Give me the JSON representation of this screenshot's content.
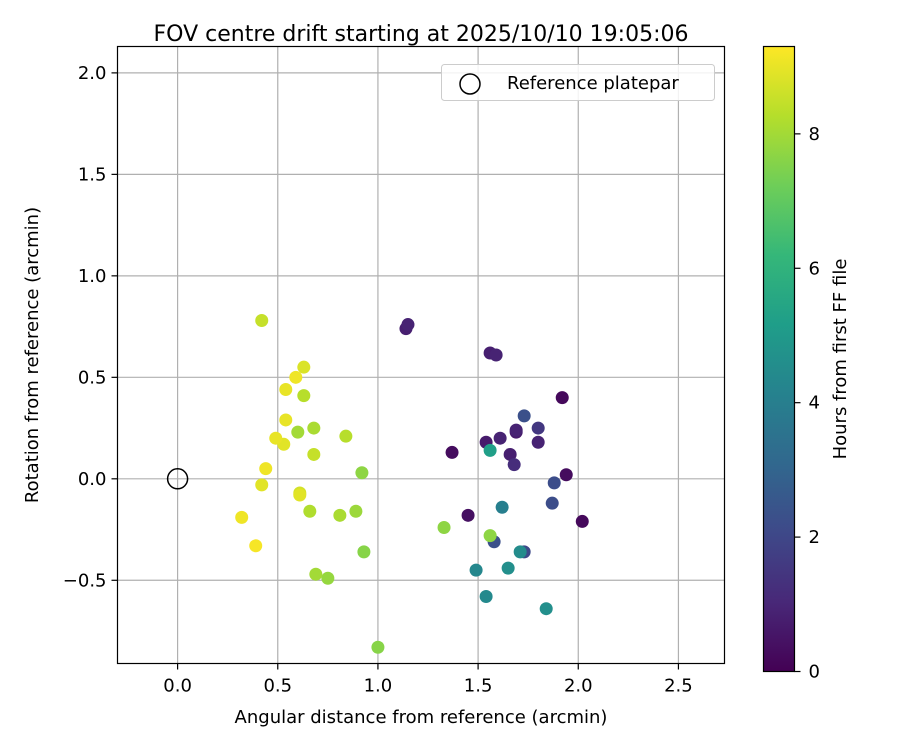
{
  "chart_data": {
    "type": "scatter",
    "title": "FOV centre drift starting at 2025/10/10 19:05:06",
    "xlabel": "Angular distance from reference (arcmin)",
    "ylabel": "Rotation from reference (arcmin)",
    "xlim": [
      -0.3,
      2.73
    ],
    "ylim": [
      -0.91,
      2.13
    ],
    "xticks": [
      0.0,
      0.5,
      1.0,
      1.5,
      2.0,
      2.5
    ],
    "xtick_labels": [
      "0.0",
      "0.5",
      "1.0",
      "1.5",
      "2.0",
      "2.5"
    ],
    "yticks": [
      -0.5,
      0.0,
      0.5,
      1.0,
      1.5,
      2.0
    ],
    "ytick_labels": [
      "−0.5",
      "0.0",
      "0.5",
      "1.0",
      "1.5",
      "2.0"
    ],
    "grid": true,
    "legend": {
      "position": "top-right",
      "entries": [
        "Reference platepar"
      ]
    },
    "reference_point": {
      "label": "Reference platepar",
      "x": 0.0,
      "y": 0.0
    },
    "colorbar": {
      "label": "Hours from first FF file",
      "range": [
        0,
        9.3
      ],
      "ticks": [
        0,
        2,
        4,
        6,
        8
      ],
      "tick_labels": [
        "0",
        "2",
        "4",
        "6",
        "8"
      ],
      "colormap": "viridis",
      "colors": [
        "#440154",
        "#482878",
        "#3e4989",
        "#31688e",
        "#26828e",
        "#1f9e89",
        "#35b779",
        "#6ece58",
        "#b5de2b",
        "#fde725"
      ]
    },
    "points": [
      {
        "x": 1.92,
        "y": 0.4,
        "t": 0.2
      },
      {
        "x": 2.02,
        "y": -0.21,
        "t": 0.2
      },
      {
        "x": 1.94,
        "y": 0.02,
        "t": 0.3
      },
      {
        "x": 1.37,
        "y": 0.13,
        "t": 0.3
      },
      {
        "x": 1.45,
        "y": -0.18,
        "t": 0.4
      },
      {
        "x": 1.14,
        "y": 0.74,
        "t": 0.8
      },
      {
        "x": 1.15,
        "y": 0.76,
        "t": 0.9
      },
      {
        "x": 1.56,
        "y": 0.62,
        "t": 0.8
      },
      {
        "x": 1.59,
        "y": 0.61,
        "t": 0.9
      },
      {
        "x": 1.54,
        "y": 0.18,
        "t": 0.7
      },
      {
        "x": 1.61,
        "y": 0.2,
        "t": 0.9
      },
      {
        "x": 1.69,
        "y": 0.23,
        "t": 0.7
      },
      {
        "x": 1.69,
        "y": 0.24,
        "t": 0.9
      },
      {
        "x": 1.66,
        "y": 0.12,
        "t": 0.8
      },
      {
        "x": 1.68,
        "y": 0.07,
        "t": 1.2
      },
      {
        "x": 1.8,
        "y": 0.18,
        "t": 0.9
      },
      {
        "x": 1.8,
        "y": 0.25,
        "t": 1.5
      },
      {
        "x": 1.73,
        "y": 0.31,
        "t": 2.3
      },
      {
        "x": 1.88,
        "y": -0.02,
        "t": 2.2
      },
      {
        "x": 1.87,
        "y": -0.12,
        "t": 2.2
      },
      {
        "x": 1.73,
        "y": -0.36,
        "t": 2.1
      },
      {
        "x": 1.58,
        "y": -0.31,
        "t": 2.3
      },
      {
        "x": 1.62,
        "y": -0.14,
        "t": 4.0
      },
      {
        "x": 1.71,
        "y": -0.36,
        "t": 4.5
      },
      {
        "x": 1.56,
        "y": 0.14,
        "t": 5.2
      },
      {
        "x": 1.49,
        "y": -0.45,
        "t": 4.3
      },
      {
        "x": 1.65,
        "y": -0.44,
        "t": 4.6
      },
      {
        "x": 1.54,
        "y": -0.58,
        "t": 4.4
      },
      {
        "x": 1.84,
        "y": -0.64,
        "t": 4.6
      },
      {
        "x": 1.56,
        "y": -0.28,
        "t": 7.7
      },
      {
        "x": 1.33,
        "y": -0.24,
        "t": 7.7
      },
      {
        "x": 1.0,
        "y": -0.83,
        "t": 7.6
      },
      {
        "x": 0.92,
        "y": 0.03,
        "t": 7.7
      },
      {
        "x": 0.93,
        "y": -0.36,
        "t": 7.6
      },
      {
        "x": 0.89,
        "y": -0.16,
        "t": 7.9
      },
      {
        "x": 0.81,
        "y": -0.18,
        "t": 8.1
      },
      {
        "x": 0.75,
        "y": -0.49,
        "t": 7.8
      },
      {
        "x": 0.69,
        "y": -0.47,
        "t": 8.0
      },
      {
        "x": 0.84,
        "y": 0.21,
        "t": 8.3
      },
      {
        "x": 0.68,
        "y": 0.25,
        "t": 8.1
      },
      {
        "x": 0.68,
        "y": 0.12,
        "t": 8.5
      },
      {
        "x": 0.66,
        "y": -0.16,
        "t": 8.2
      },
      {
        "x": 0.6,
        "y": 0.23,
        "t": 8.0
      },
      {
        "x": 0.63,
        "y": 0.41,
        "t": 8.3
      },
      {
        "x": 0.63,
        "y": 0.55,
        "t": 8.8
      },
      {
        "x": 0.61,
        "y": -0.07,
        "t": 8.7
      },
      {
        "x": 0.61,
        "y": -0.08,
        "t": 8.9
      },
      {
        "x": 0.54,
        "y": 0.29,
        "t": 9.0
      },
      {
        "x": 0.53,
        "y": 0.17,
        "t": 8.9
      },
      {
        "x": 0.49,
        "y": 0.2,
        "t": 9.0
      },
      {
        "x": 0.54,
        "y": 0.44,
        "t": 9.0
      },
      {
        "x": 0.59,
        "y": 0.5,
        "t": 9.1
      },
      {
        "x": 0.42,
        "y": 0.78,
        "t": 8.5
      },
      {
        "x": 0.44,
        "y": 0.05,
        "t": 9.1
      },
      {
        "x": 0.42,
        "y": -0.03,
        "t": 8.9
      },
      {
        "x": 0.32,
        "y": -0.19,
        "t": 9.1
      },
      {
        "x": 0.39,
        "y": -0.33,
        "t": 9.2
      }
    ]
  }
}
